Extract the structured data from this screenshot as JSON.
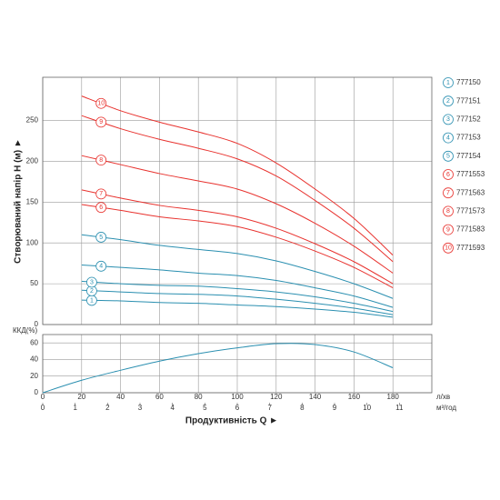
{
  "chart_data": [
    {
      "type": "line",
      "y_label": "Створюваний напір H (м) ►",
      "x": [
        20,
        40,
        60,
        80,
        100,
        120,
        140,
        160,
        180
      ],
      "xlim": [
        0,
        200
      ],
      "xticks": [
        0,
        20,
        40,
        60,
        80,
        100,
        120,
        140,
        160,
        180
      ],
      "ylim": [
        0,
        303
      ],
      "yticks": [
        0,
        50,
        100,
        150,
        200,
        250
      ],
      "grid": true,
      "series": [
        {
          "name": "777150",
          "label": "1",
          "color": "#2a8fb0",
          "values": [
            30,
            29,
            27,
            26,
            24,
            22,
            19,
            15,
            9
          ]
        },
        {
          "name": "777151",
          "label": "2",
          "color": "#2a8fb0",
          "values": [
            42,
            40,
            38,
            37,
            35,
            31,
            26,
            20,
            12
          ]
        },
        {
          "name": "777152",
          "label": "3",
          "color": "#2a8fb0",
          "values": [
            53,
            50,
            48,
            47,
            44,
            40,
            34,
            26,
            16
          ]
        },
        {
          "name": "777153",
          "label": "4",
          "color": "#2a8fb0",
          "values": [
            73,
            70,
            67,
            63,
            60,
            54,
            45,
            35,
            21
          ]
        },
        {
          "name": "777154",
          "label": "5",
          "color": "#2a8fb0",
          "values": [
            110,
            104,
            97,
            92,
            87,
            78,
            65,
            50,
            32
          ]
        },
        {
          "name": "7771553",
          "label": "6",
          "color": "#e8322e",
          "values": [
            147,
            140,
            132,
            127,
            120,
            107,
            90,
            70,
            45
          ]
        },
        {
          "name": "7771563",
          "label": "7",
          "color": "#e8322e",
          "values": [
            165,
            155,
            146,
            140,
            132,
            118,
            99,
            77,
            50
          ]
        },
        {
          "name": "7771573",
          "label": "8",
          "color": "#e8322e",
          "values": [
            207,
            196,
            185,
            176,
            166,
            148,
            124,
            96,
            63
          ]
        },
        {
          "name": "7771583",
          "label": "9",
          "color": "#e8322e",
          "values": [
            256,
            240,
            227,
            216,
            203,
            182,
            152,
            118,
            77
          ]
        },
        {
          "name": "7771593",
          "label": "10",
          "color": "#e8322e",
          "values": [
            280,
            262,
            248,
            236,
            222,
            198,
            166,
            130,
            85
          ]
        }
      ]
    },
    {
      "type": "line",
      "y_label": "ККД(%)",
      "x": [
        0,
        20,
        40,
        60,
        80,
        100,
        120,
        140,
        160,
        180
      ],
      "values": [
        0,
        15,
        27,
        38,
        47,
        54,
        59,
        58,
        49,
        30
      ],
      "color": "#2a8fb0",
      "xlim": [
        0,
        200
      ],
      "xticks": [
        0,
        20,
        40,
        60,
        80,
        100,
        120,
        140,
        160,
        180
      ],
      "ylim": [
        0,
        70
      ],
      "yticks": [
        0,
        20,
        40,
        60
      ],
      "grid": true,
      "x_label": "Продуктивність Q ►",
      "x_unit": "л/хв",
      "x2_unit": "м³/год",
      "x2lim": [
        0,
        12
      ],
      "x2ticks": [
        0,
        1,
        2,
        3,
        4,
        5,
        6,
        7,
        8,
        9,
        10,
        11
      ]
    }
  ]
}
